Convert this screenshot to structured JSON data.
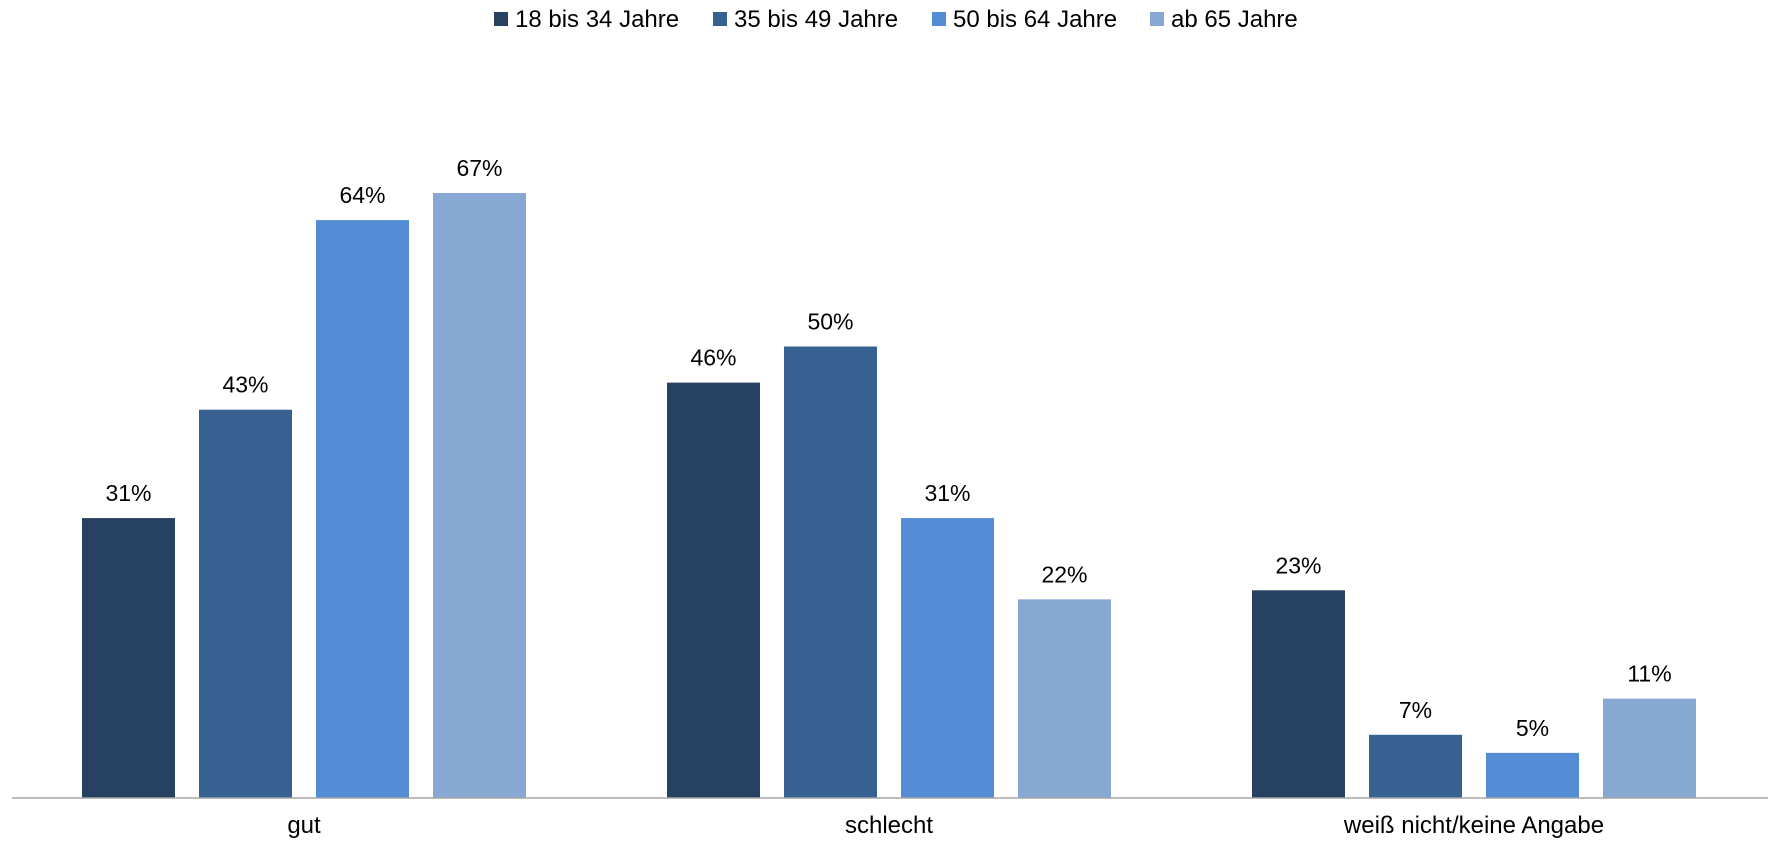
{
  "chart_data": {
    "type": "bar",
    "categories": [
      "gut",
      "schlecht",
      "weiß nicht/keine Angabe"
    ],
    "series": [
      {
        "name": "18 bis 34 Jahre",
        "values": [
          31,
          46,
          23
        ],
        "color": "#264161"
      },
      {
        "name": "35 bis 49 Jahre",
        "values": [
          43,
          50,
          7
        ],
        "color": "#376190"
      },
      {
        "name": "50 bis 64 Jahre",
        "values": [
          64,
          31,
          5
        ],
        "color": "#548dd6"
      },
      {
        "name": "ab 65 Jahre",
        "values": [
          67,
          22,
          11
        ],
        "color": "#87a8d3"
      }
    ],
    "value_suffix": "%",
    "ylim": [
      0,
      100
    ],
    "grid": false,
    "legend_position": "top-center",
    "axis_color": "#a6a6a6"
  }
}
